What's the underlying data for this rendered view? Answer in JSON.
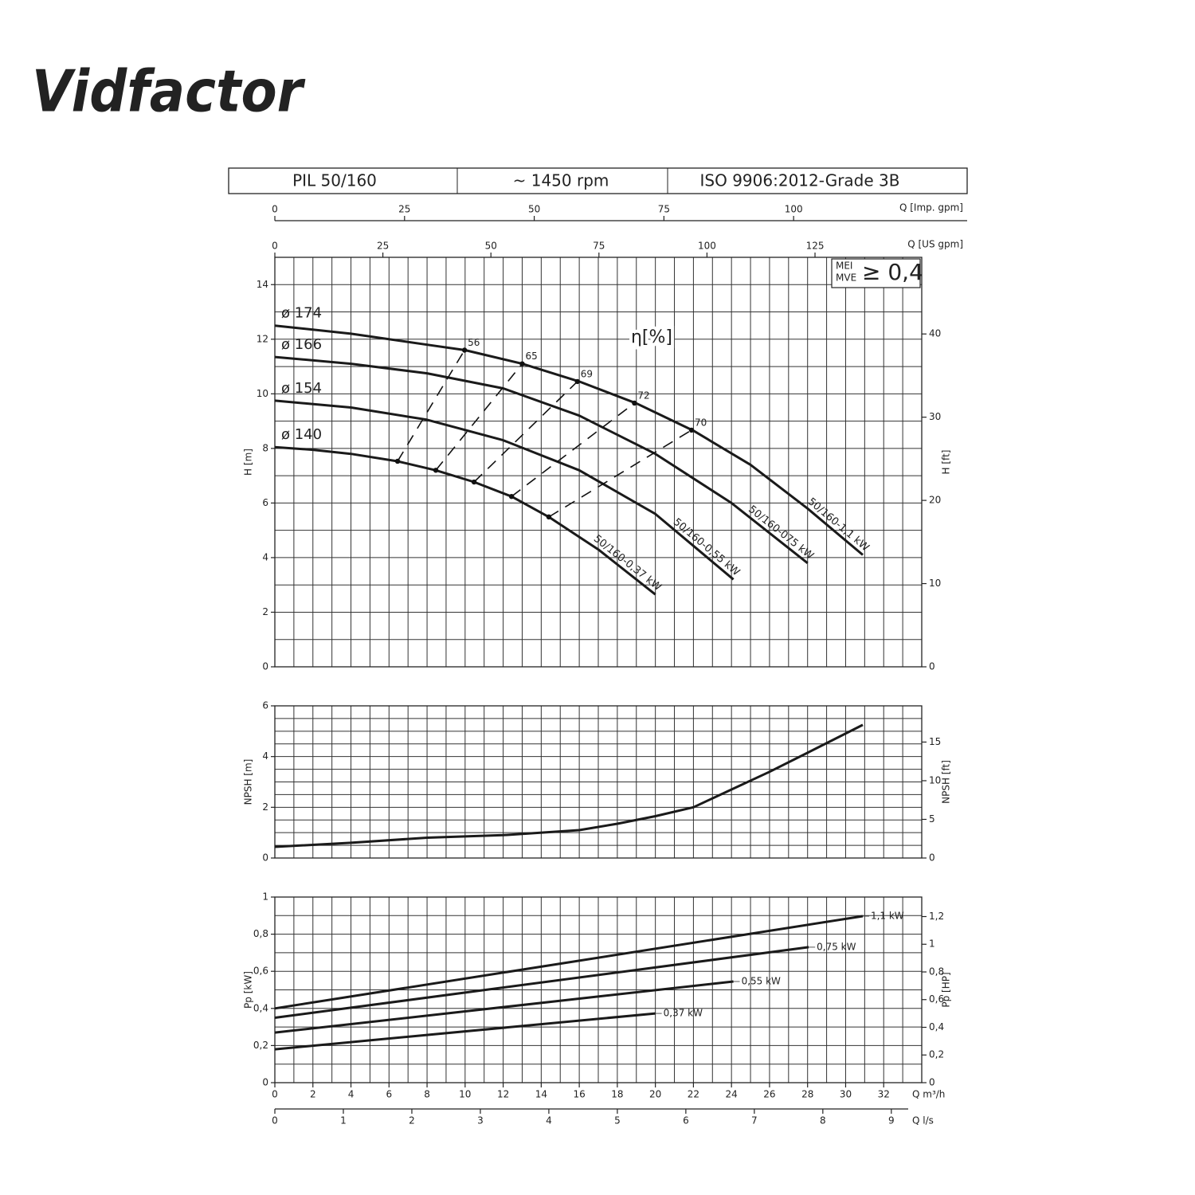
{
  "header": {
    "logo": "Vidfactor",
    "model": "PIL 50/160",
    "speed": "~ 1450 rpm",
    "standard": "ISO 9906:2012-Grade 3B"
  },
  "chart_data": [
    {
      "type": "line",
      "y_label": "H [m]",
      "y2_label": "H [ft]",
      "xlim": [
        0,
        34
      ],
      "ylim": [
        0,
        15
      ],
      "yticks": [
        0,
        2,
        4,
        6,
        8,
        10,
        12,
        14
      ],
      "y2lim": [
        0,
        49.21
      ],
      "y2ticks": [
        0,
        10,
        20,
        30,
        40
      ],
      "grid": {
        "minor_x": 2,
        "minor_y": 2
      },
      "color": "#1a1a1a",
      "top_axes": [
        {
          "label": "Q [US gpm]",
          "xlim": [
            0,
            149.7
          ],
          "xticks": [
            0,
            25,
            50,
            75,
            100,
            125
          ]
        },
        {
          "label": "Q [Imp. gpm]",
          "xlim": [
            0,
            124.7
          ],
          "xticks": [
            0,
            25,
            50,
            75,
            100
          ]
        }
      ],
      "mei": {
        "labels": [
          "MEI",
          "MVE"
        ],
        "text": "≥ 0,4"
      },
      "series": [
        {
          "name": "50/160-1,1 kW",
          "diameter": "ø 174",
          "x": [
            0,
            4,
            8,
            10,
            13,
            16,
            19,
            22,
            25,
            28,
            30.9
          ],
          "values": [
            12.5,
            12.2,
            11.8,
            11.6,
            11.1,
            10.45,
            9.65,
            8.65,
            7.4,
            5.8,
            4.1
          ]
        },
        {
          "name": "50/160-075 kW",
          "diameter": "ø 166",
          "x": [
            0,
            4,
            8,
            12,
            16,
            20,
            24,
            28
          ],
          "values": [
            11.35,
            11.1,
            10.75,
            10.2,
            9.2,
            7.8,
            6.0,
            3.8
          ]
        },
        {
          "name": "50/160-0,55 kW",
          "diameter": "ø 154",
          "x": [
            0,
            4,
            8,
            12,
            16,
            20,
            24.1
          ],
          "values": [
            9.75,
            9.5,
            9.05,
            8.3,
            7.2,
            5.6,
            3.2
          ]
        },
        {
          "name": "50/160-0,37 kW",
          "diameter": "ø 140",
          "x": [
            0,
            2,
            4,
            6.45,
            8.46,
            10.47,
            12.44,
            14.4,
            17,
            20
          ],
          "values": [
            8.05,
            7.95,
            7.8,
            7.53,
            7.2,
            6.77,
            6.24,
            5.49,
            4.3,
            2.65
          ]
        }
      ],
      "efficiency": {
        "label": "η[%]",
        "lines": [
          {
            "value": 56,
            "x": [
              6.45,
              9.97
            ],
            "values": [
              7.53,
              11.6
            ]
          },
          {
            "value": 65,
            "x": [
              8.46,
              13
            ],
            "values": [
              7.2,
              11.1
            ]
          },
          {
            "value": 69,
            "x": [
              10.47,
              15.9
            ],
            "values": [
              6.77,
              10.45
            ]
          },
          {
            "value": 72,
            "x": [
              12.44,
              18.9
            ],
            "values": [
              6.24,
              9.66
            ]
          },
          {
            "value": 70,
            "x": [
              14.4,
              21.9
            ],
            "values": [
              5.49,
              8.67
            ]
          }
        ]
      }
    },
    {
      "type": "line",
      "y_label": "NPSH [m]",
      "y2_label": "NPSH [ft]",
      "xlim": [
        0,
        34
      ],
      "ylim": [
        0,
        6
      ],
      "yticks": [
        0,
        2,
        4,
        6
      ],
      "y2lim": [
        0,
        19.685
      ],
      "y2ticks": [
        0,
        5,
        10,
        15
      ],
      "grid": {
        "minor_x": 2,
        "minor_y": 4
      },
      "color": "#1a1a1a",
      "x": [
        0,
        4,
        8,
        12,
        16,
        18,
        20,
        22,
        24,
        26,
        28,
        30.9
      ],
      "values": [
        0.44,
        0.6,
        0.8,
        0.9,
        1.1,
        1.35,
        1.65,
        2.0,
        2.7,
        3.4,
        4.15,
        5.25
      ]
    },
    {
      "type": "line",
      "y_label": "Pp [kW]",
      "y2_label": "Pp [HP]",
      "x_label": "Q m³/h",
      "xlim": [
        0,
        34
      ],
      "xticks": [
        0,
        2,
        4,
        6,
        8,
        10,
        12,
        14,
        16,
        18,
        20,
        22,
        24,
        26,
        28,
        30,
        32
      ],
      "x2_label": "Q l/s",
      "x2lim": [
        0,
        9.444
      ],
      "x2ticks": [
        0,
        1,
        2,
        3,
        4,
        5,
        6,
        7,
        8,
        9
      ],
      "ylim": [
        0,
        1
      ],
      "yticks": [
        0,
        {
          "value": 0.2,
          "label": "0,2"
        },
        {
          "value": 0.4,
          "label": "0,4"
        },
        {
          "value": 0.6,
          "label": "0,6"
        },
        {
          "value": 0.8,
          "label": "0,8"
        },
        1
      ],
      "y2lim": [
        0,
        1.341
      ],
      "y2ticks": [
        0,
        {
          "value": 0.2,
          "label": "0,2"
        },
        {
          "value": 0.4,
          "label": "0,4"
        },
        {
          "value": 0.6,
          "label": "0,6"
        },
        {
          "value": 0.8,
          "label": "0,8"
        },
        1,
        {
          "value": 1.2,
          "label": "1,2"
        }
      ],
      "grid": {
        "minor_x": 2,
        "minor_y": 2
      },
      "color": "#1a1a1a",
      "series": [
        {
          "name": "1,1 kW",
          "x": [
            0,
            30.9
          ],
          "values": [
            0.4,
            0.897
          ]
        },
        {
          "name": "0,75 kW",
          "x": [
            0,
            28.06
          ],
          "values": [
            0.35,
            0.73
          ]
        },
        {
          "name": "0,55 kW",
          "x": [
            0,
            24.1
          ],
          "values": [
            0.27,
            0.545
          ]
        },
        {
          "name": "0,37 kW",
          "x": [
            0,
            20
          ],
          "values": [
            0.18,
            0.373
          ]
        }
      ]
    }
  ]
}
